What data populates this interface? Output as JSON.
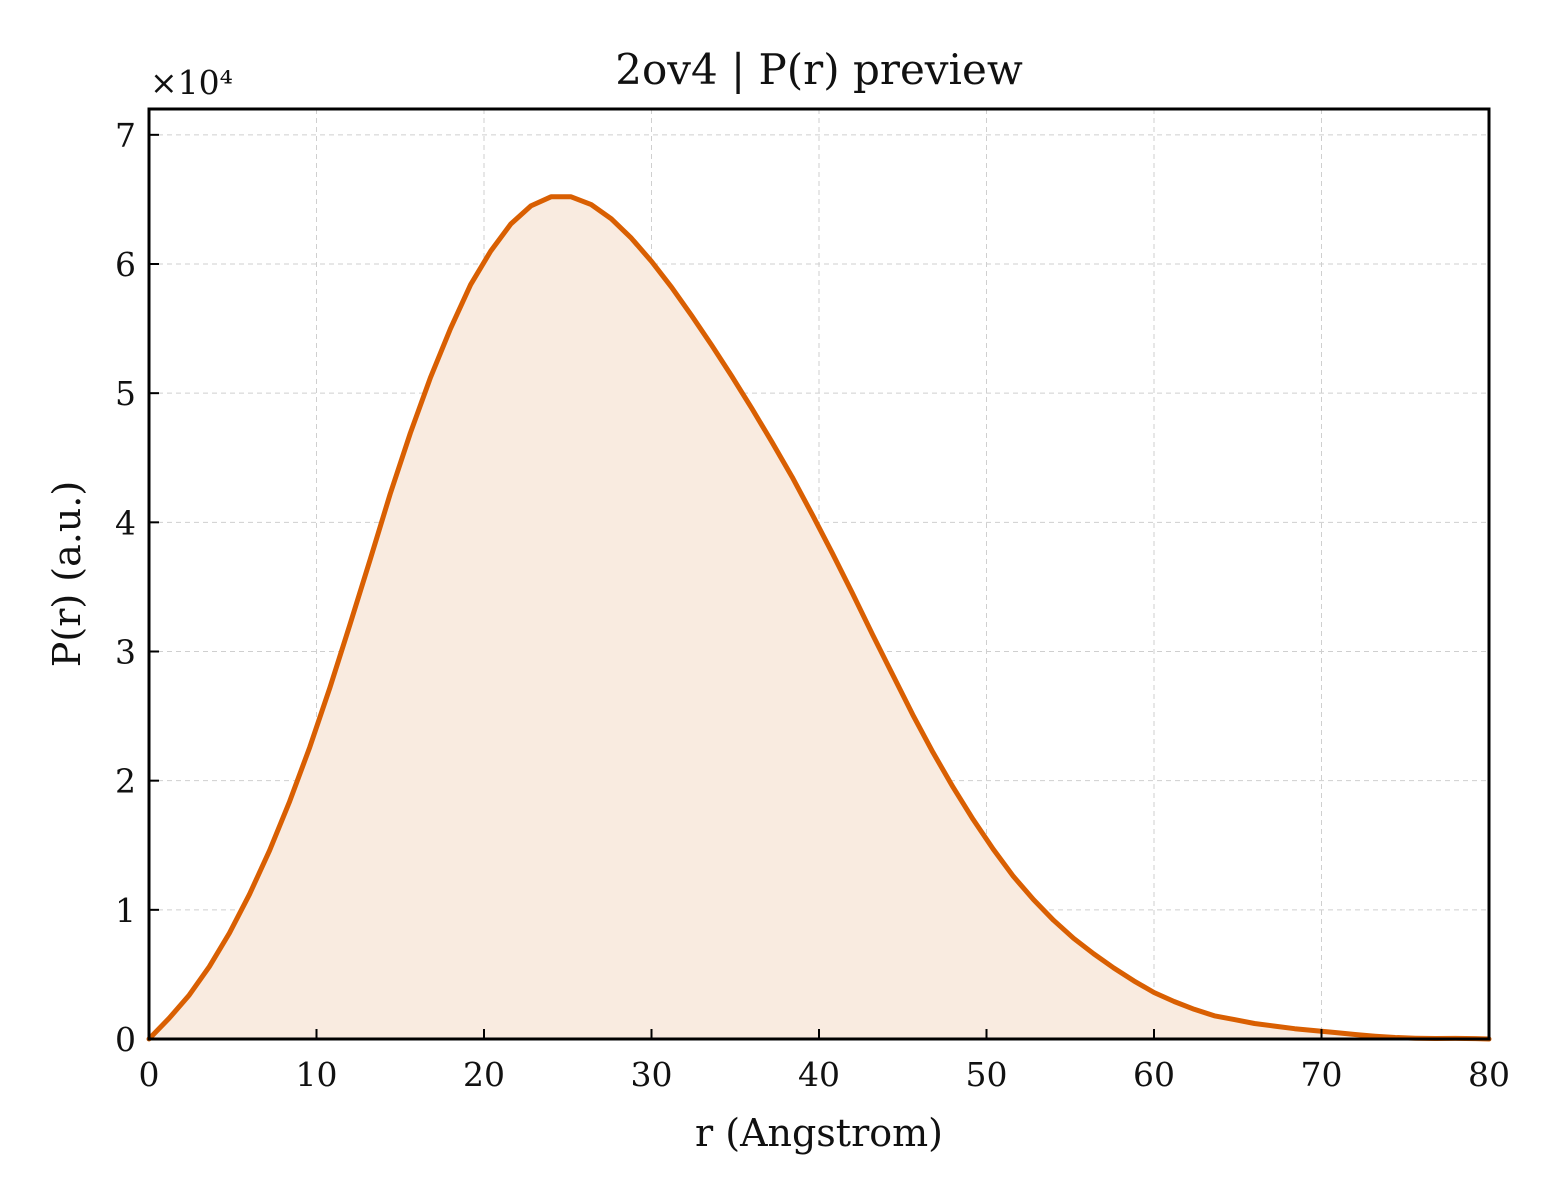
{
  "chart_data": {
    "type": "area",
    "title": "2ov4 | P(r) preview",
    "xlabel": "r (Angstrom)",
    "ylabel": "P(r) (a.u.)",
    "y_offset_label": "×10⁴",
    "y_scale_factor": 10000,
    "xlim": [
      0,
      80
    ],
    "ylim": [
      0,
      72000
    ],
    "xticks": [
      0,
      10,
      20,
      30,
      40,
      50,
      60,
      70,
      80
    ],
    "yticks": [
      0,
      1,
      2,
      3,
      4,
      5,
      6,
      7
    ],
    "grid": true,
    "line_color": "#d95f02",
    "fill_color": "#f9ebe0",
    "series": [
      {
        "x": [
          0,
          1.2,
          2.4,
          3.6,
          4.8,
          6,
          7.2,
          8.4,
          9.6,
          10.8,
          12,
          13.2,
          14.4,
          15.6,
          16.8,
          18,
          19.2,
          20.4,
          21.6,
          22.8,
          24,
          25.2,
          26.4,
          27.6,
          28.8,
          30,
          31.2,
          32.4,
          33.6,
          34.8,
          36,
          37.2,
          38.4,
          39.6,
          40.8,
          42,
          43.2,
          44.4,
          45.6,
          46.8,
          48,
          49.2,
          50.4,
          51.6,
          52.8,
          54,
          55.2,
          56.4,
          57.6,
          58.8,
          60,
          61.2,
          62.4,
          63.6,
          64.8,
          66,
          67.2,
          68.4,
          69.6,
          70.8,
          72,
          73.2,
          74.4,
          75.6,
          76.8,
          78,
          79.2,
          80
        ],
        "y": [
          0,
          1600,
          3400,
          5600,
          8200,
          11200,
          14600,
          18400,
          22600,
          27200,
          32100,
          37100,
          42200,
          46900,
          51200,
          55000,
          58400,
          61000,
          63100,
          64500,
          65200,
          65200,
          64600,
          63500,
          62000,
          60200,
          58200,
          56000,
          53700,
          51300,
          48800,
          46200,
          43500,
          40600,
          37600,
          34500,
          31300,
          28200,
          25100,
          22200,
          19500,
          17000,
          14700,
          12600,
          10800,
          9200,
          7800,
          6600,
          5500,
          4500,
          3600,
          2900,
          2300,
          1800,
          1500,
          1200,
          1000,
          800,
          650,
          500,
          350,
          220,
          120,
          60,
          40,
          50,
          30,
          0
        ]
      }
    ]
  }
}
